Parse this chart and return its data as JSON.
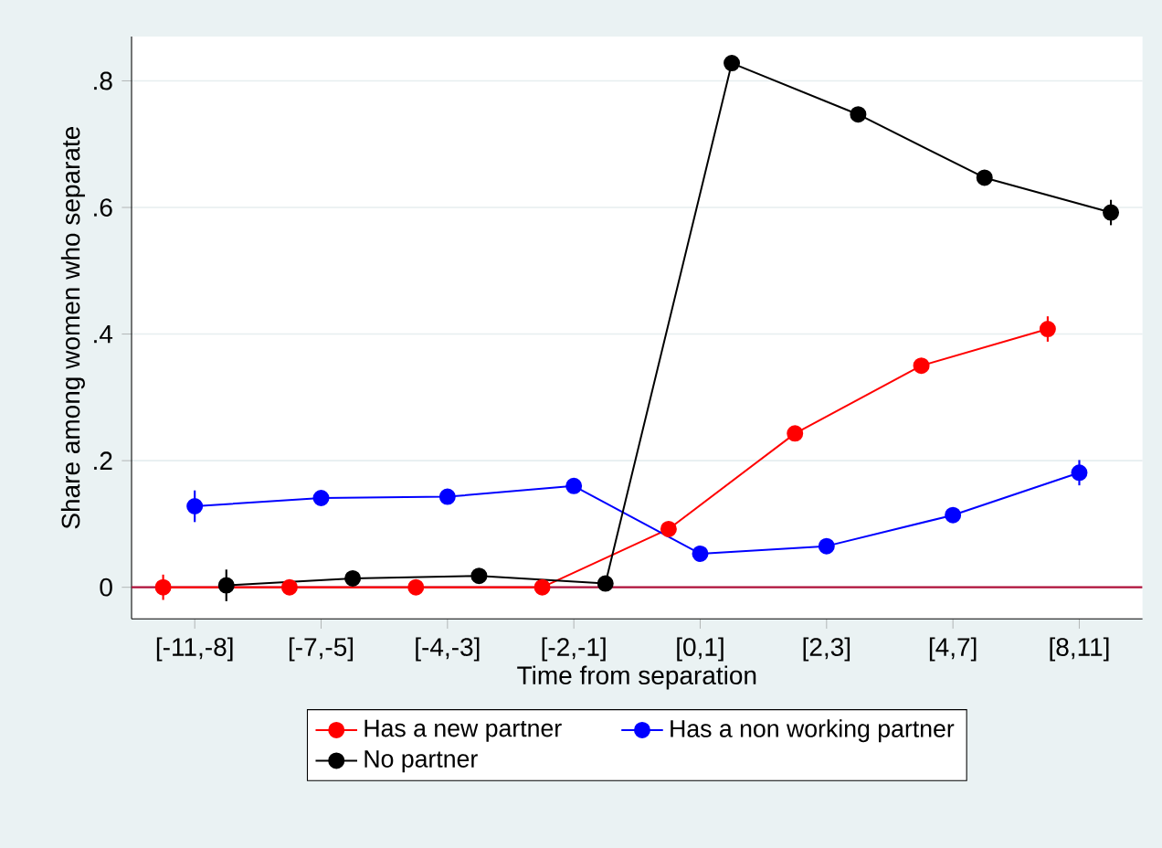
{
  "chart_data": {
    "type": "line",
    "xlabel": "Time from separation",
    "ylabel": "Share among women who separate",
    "ylim": [
      -0.05,
      0.87
    ],
    "categories": [
      "[-11,-8]",
      "[-7,-5]",
      "[-4,-3]",
      "[-2,-1]",
      "[0,1]",
      "[2,3]",
      "[4,7]",
      "[8,11]"
    ],
    "yticks": [
      0,
      {
        "value": 0.2,
        "label": ".2"
      },
      {
        "value": 0.4,
        "label": ".4"
      },
      {
        "value": 0.6,
        "label": ".6"
      },
      {
        "value": 0.8,
        "label": ".8"
      }
    ],
    "grid": "y",
    "legend": "bottom",
    "marker": "circle",
    "line_style": "solid",
    "series": [
      {
        "name": "Has a new partner",
        "color": "#ff0000",
        "values": [
          0,
          0,
          0,
          0,
          0.092,
          0.243,
          0.35,
          0.408
        ],
        "errors": [
          0.02,
          null,
          null,
          null,
          null,
          null,
          null,
          0.02
        ]
      },
      {
        "name": "Has a non working partner",
        "color": "#0000ff",
        "values": [
          0.128,
          0.141,
          0.143,
          0.16,
          0.053,
          0.065,
          0.114,
          0.181
        ],
        "errors": [
          0.025,
          null,
          null,
          null,
          null,
          null,
          null,
          0.02
        ]
      },
      {
        "name": "No partner",
        "color": "#000000",
        "values": [
          0.003,
          0.014,
          0.018,
          0.006,
          0.828,
          0.747,
          0.647,
          0.592
        ],
        "errors": [
          0.025,
          null,
          null,
          null,
          null,
          null,
          null,
          0.02
        ]
      }
    ],
    "ref_lines": [
      {
        "axis": "y",
        "value": 0,
        "color": "#b0103a",
        "line_style": "solid"
      }
    ]
  }
}
